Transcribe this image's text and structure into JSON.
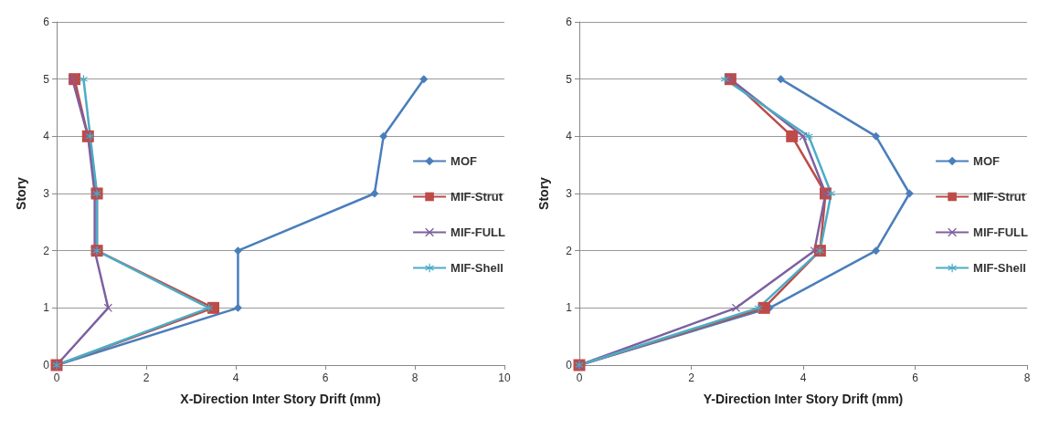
{
  "chart_data": [
    {
      "type": "line",
      "xlabel": "X-Direction Inter Story Drift (mm)",
      "ylabel": "Story",
      "xlim": [
        0,
        10
      ],
      "xticks": [
        0,
        2,
        4,
        6,
        8,
        10
      ],
      "ylim": [
        0,
        6
      ],
      "yticks": [
        0,
        1,
        2,
        3,
        4,
        5,
        6
      ],
      "grid": "y",
      "legend": "right",
      "series": [
        {
          "name": "MOF",
          "color": "#4a7ebb",
          "marker": "diamond",
          "x": [
            0,
            4.05,
            4.05,
            7.1,
            7.3,
            8.2
          ],
          "values": [
            0,
            1,
            2,
            3,
            4,
            5
          ]
        },
        {
          "name": "MIF-Strut",
          "color": "#be4b48",
          "marker": "square",
          "x": [
            0,
            3.5,
            0.9,
            0.9,
            0.7,
            0.4
          ],
          "values": [
            0,
            1,
            2,
            3,
            4,
            5
          ]
        },
        {
          "name": "MIF-FULL",
          "color": "#7d60a0",
          "marker": "cross",
          "x": [
            0,
            1.15,
            0.85,
            0.85,
            0.7,
            0.35
          ],
          "values": [
            0,
            1,
            2,
            3,
            4,
            5
          ]
        },
        {
          "name": "MIF-Shell",
          "color": "#4bacc6",
          "marker": "star",
          "x": [
            0,
            3.4,
            0.9,
            0.9,
            0.75,
            0.6
          ],
          "values": [
            0,
            1,
            2,
            3,
            4,
            5
          ]
        }
      ]
    },
    {
      "type": "line",
      "xlabel": "Y-Direction Inter Story Drift (mm)",
      "ylabel": "Story",
      "xlim": [
        0,
        8
      ],
      "xticks": [
        0,
        2,
        4,
        6,
        8
      ],
      "ylim": [
        0,
        6
      ],
      "yticks": [
        0,
        1,
        2,
        3,
        4,
        5,
        6
      ],
      "grid": "y",
      "legend": "right",
      "series": [
        {
          "name": "MOF",
          "color": "#4a7ebb",
          "marker": "diamond",
          "x": [
            0,
            3.4,
            5.3,
            5.9,
            5.3,
            3.6
          ],
          "values": [
            0,
            1,
            2,
            3,
            4,
            5
          ]
        },
        {
          "name": "MIF-Strut",
          "color": "#be4b48",
          "marker": "square",
          "x": [
            0,
            3.3,
            4.3,
            4.4,
            3.8,
            2.7
          ],
          "values": [
            0,
            1,
            2,
            3,
            4,
            5
          ]
        },
        {
          "name": "MIF-FULL",
          "color": "#7d60a0",
          "marker": "cross",
          "x": [
            0,
            2.8,
            4.2,
            4.4,
            4.0,
            2.7
          ],
          "values": [
            0,
            1,
            2,
            3,
            4,
            5
          ]
        },
        {
          "name": "MIF-Shell",
          "color": "#4bacc6",
          "marker": "star",
          "x": [
            0,
            3.2,
            4.3,
            4.5,
            4.1,
            2.6
          ],
          "values": [
            0,
            1,
            2,
            3,
            4,
            5
          ]
        }
      ]
    }
  ]
}
